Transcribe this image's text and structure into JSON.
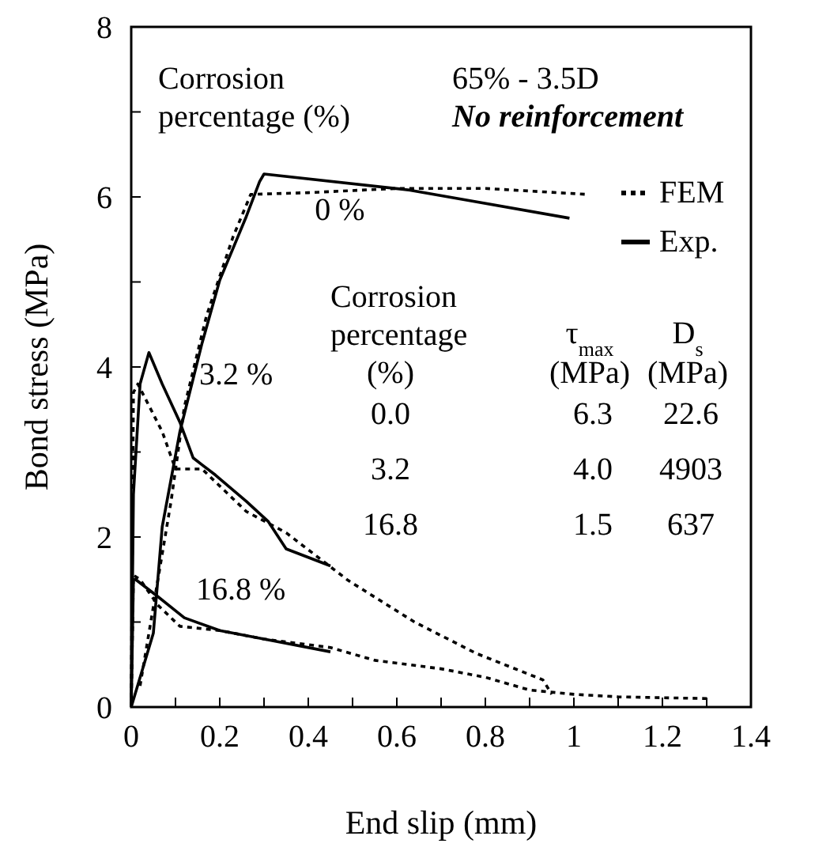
{
  "chart_data": {
    "type": "line",
    "xlabel": "End slip (mm)",
    "ylabel": "Bond stress (MPa)",
    "xlim": [
      0,
      1.4
    ],
    "ylim": [
      0,
      8
    ],
    "xticks": [
      0,
      {
        "value": 0.1,
        "label": null
      },
      0.2,
      {
        "value": 0.3,
        "label": null
      },
      0.4,
      {
        "value": 0.5,
        "label": null
      },
      0.6,
      {
        "value": 0.7,
        "label": null
      },
      0.8,
      {
        "value": 0.9,
        "label": null
      },
      1,
      {
        "value": 1.1,
        "label": null
      },
      1.2,
      {
        "value": 1.3,
        "label": null
      },
      1.4
    ],
    "yticks": [
      0,
      {
        "value": 1,
        "label": null
      },
      2,
      {
        "value": 3,
        "label": null
      },
      4,
      {
        "value": 5,
        "label": null
      },
      6,
      {
        "value": 7,
        "label": null
      },
      8
    ],
    "grid": false,
    "legend": "top right",
    "series": [
      {
        "name": "FEM",
        "color": "#000000",
        "line_style": "dotted",
        "x": [
          0.02,
          0.06,
          0.09,
          0.12,
          0.17,
          0.23,
          0.27,
          0.4,
          0.6,
          0.8,
          1.03
        ],
        "values": [
          0.25,
          1.49,
          2.42,
          3.53,
          4.6,
          5.53,
          6.03,
          6.05,
          6.1,
          6.1,
          6.03
        ]
      },
      {
        "name": "Exp.",
        "color": "#000000",
        "line_style": "solid",
        "x": [
          0,
          0.05,
          0.07,
          0.11,
          0.16,
          0.2,
          0.26,
          0.29,
          0.3,
          0.63,
          0.99
        ],
        "values": [
          0,
          0.87,
          2.12,
          3.24,
          4.28,
          5.02,
          5.77,
          6.18,
          6.27,
          6.08,
          5.75
        ]
      },
      {
        "color": "#000000",
        "line_style": "dotted",
        "x": [
          0,
          0.005,
          0.015,
          0.07,
          0.1,
          0.16,
          0.26,
          0.35,
          0.49,
          0.64,
          0.78,
          0.93,
          0.95
        ],
        "values": [
          0,
          3.7,
          3.8,
          3.24,
          2.8,
          2.8,
          2.3,
          2.05,
          1.49,
          1.0,
          0.63,
          0.32,
          0.15
        ]
      },
      {
        "color": "#000000",
        "line_style": "solid",
        "x": [
          0,
          0.005,
          0.02,
          0.04,
          0.07,
          0.11,
          0.14,
          0.19,
          0.26,
          0.31,
          0.35,
          0.45
        ],
        "values": [
          0,
          2.5,
          3.8,
          4.17,
          3.8,
          3.35,
          2.93,
          2.73,
          2.42,
          2.18,
          1.86,
          1.66
        ]
      },
      {
        "color": "#000000",
        "line_style": "dotted",
        "x": [
          0,
          0.005,
          0.02,
          0.06,
          0.11,
          0.2,
          0.3,
          0.45,
          0.55,
          0.7,
          0.8,
          0.9,
          1.0,
          1.1,
          1.3
        ],
        "values": [
          0,
          1.55,
          1.5,
          1.2,
          0.95,
          0.9,
          0.8,
          0.7,
          0.55,
          0.45,
          0.35,
          0.2,
          0.15,
          0.12,
          0.1
        ]
      },
      {
        "color": "#000000",
        "line_style": "solid",
        "x": [
          0,
          0.005,
          0.01,
          0.06,
          0.12,
          0.2,
          0.3,
          0.45
        ],
        "values": [
          0,
          1.5,
          1.5,
          1.3,
          1.05,
          0.9,
          0.8,
          0.65
        ]
      }
    ],
    "annotations": [
      "0 %",
      "3.2 %",
      "16.8 %",
      "Corrosion",
      "percentage (%)",
      "65% - 3.5D",
      "No reinforcement",
      "Corrosion",
      "percentage",
      "(%)",
      "0.0",
      "3.2",
      "16.8",
      "τ$_{max}$",
      "(MPa)",
      "6.3",
      "4.0",
      "1.5",
      "D$_{s}$",
      "(MPa)",
      "22.6",
      "4903",
      "637"
    ]
  }
}
